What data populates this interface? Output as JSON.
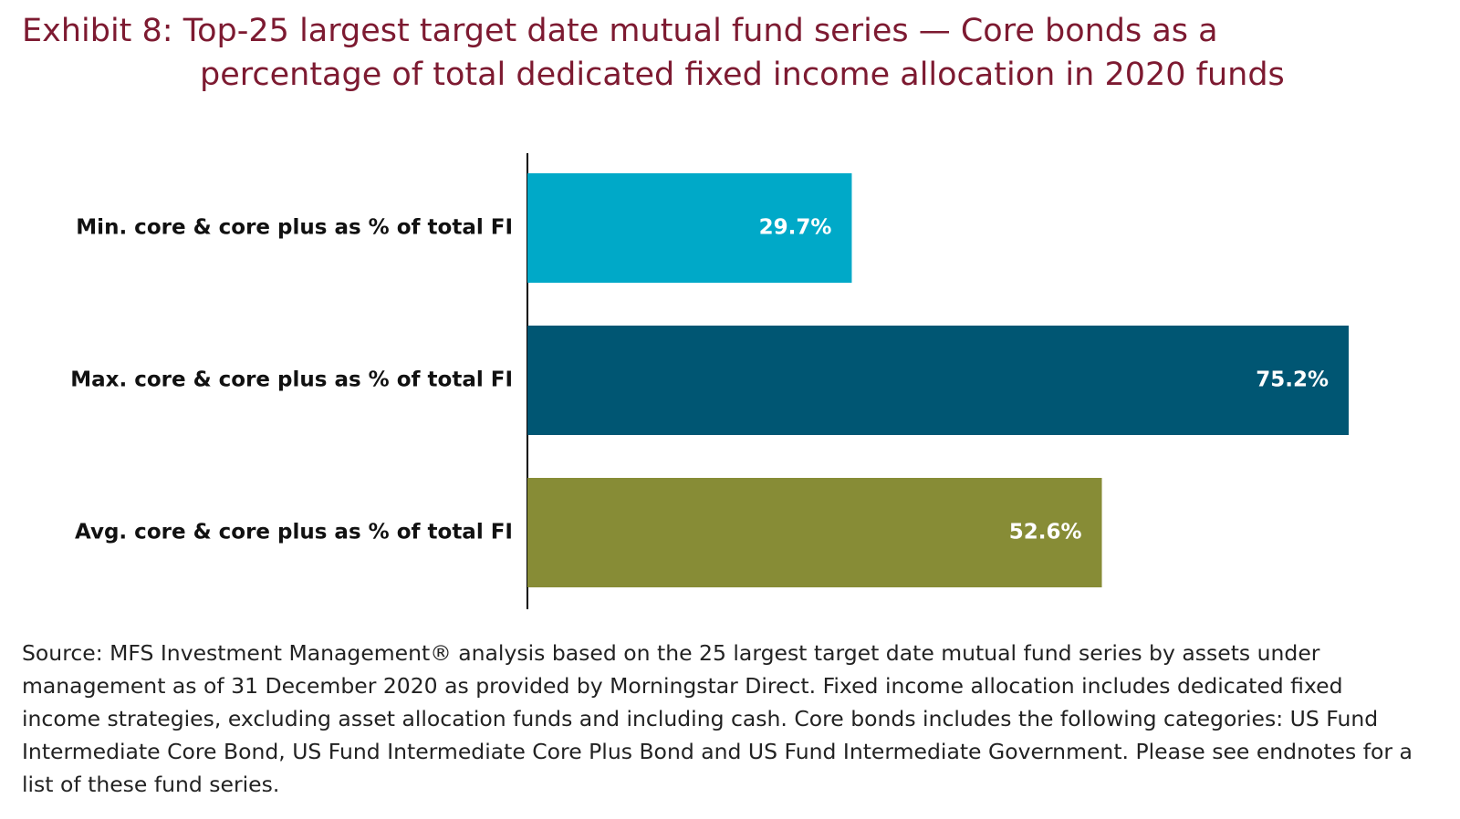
{
  "chart_data": {
    "type": "hbar",
    "title": "Exhibit 8: Top-25 largest target date mutual fund series — Core bonds as a percentage of total dedicated fixed income allocation in 2020 funds",
    "categories": [
      "Min. core & core plus as % of total FI",
      "Max. core & core plus as % of total FI",
      "Avg. core & core plus as % of total FI"
    ],
    "values": [
      29.7,
      75.2,
      52.6
    ],
    "value_labels": [
      "29.7%",
      "75.2%",
      "52.6%"
    ],
    "colors": [
      "#00a9c8",
      "#005673",
      "#878c36"
    ],
    "note": "Source: MFS Investment Management® analysis based on the 25 largest target date mutual fund series by assets under management as of 31 December 2020 as provided by Morningstar Direct. Fixed income allocation includes dedicated fixed income strategies, excluding asset allocation funds and including cash. Core bonds includes the following categories: US Fund Intermediate Core Bond, US Fund Intermediate Core Plus Bond and US Fund Intermediate Government. Please see endnotes for a list of these fund series."
  }
}
